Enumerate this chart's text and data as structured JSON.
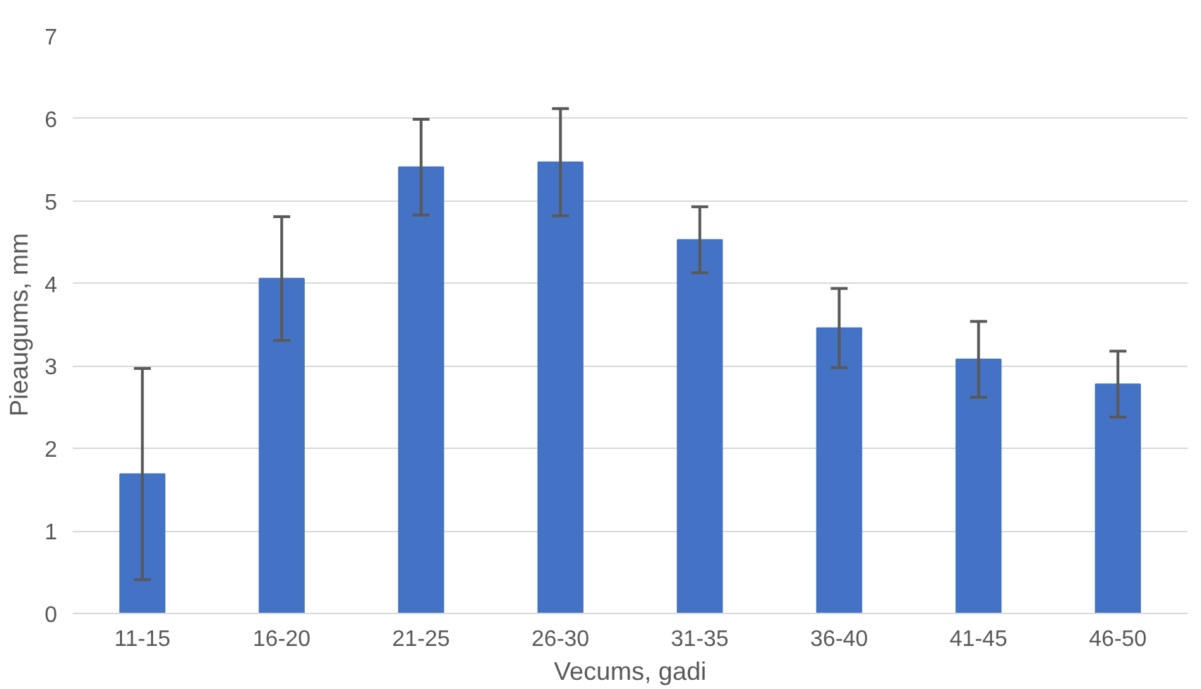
{
  "chart_data": {
    "type": "bar",
    "xlabel": "Vecums, gadi",
    "ylabel": "Pieaugums, mm",
    "categories": [
      "11-15",
      "16-20",
      "21-25",
      "26-30",
      "31-35",
      "36-40",
      "41-45",
      "46-50"
    ],
    "values": [
      1.69,
      4.06,
      5.41,
      5.47,
      4.53,
      3.46,
      3.08,
      2.78
    ],
    "errors": [
      1.28,
      0.75,
      0.58,
      0.65,
      0.4,
      0.48,
      0.46,
      0.4
    ],
    "color": "#4472c4",
    "ylim": [
      0,
      7
    ],
    "yticks": [
      0,
      1,
      2,
      3,
      4,
      5,
      6,
      7
    ],
    "grid": "y"
  }
}
